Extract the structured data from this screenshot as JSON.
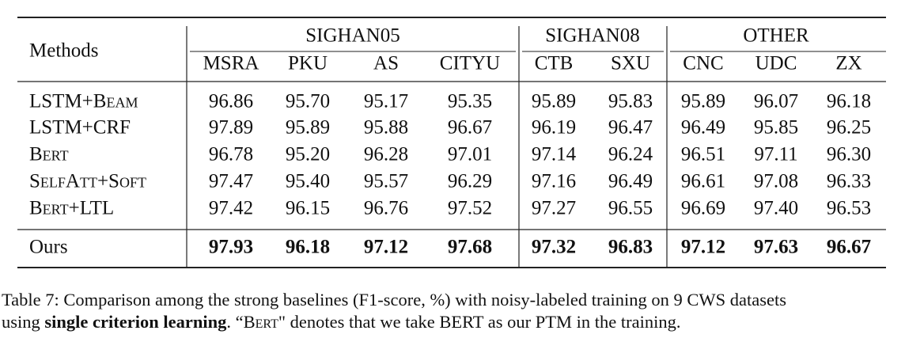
{
  "table": {
    "corner": "Methods",
    "groups": [
      "SIGHAN05",
      "SIGHAN08",
      "OTHER"
    ],
    "columns": [
      "MSRA",
      "PKU",
      "AS",
      "CITYU",
      "CTB",
      "SXU",
      "CNC",
      "UDC",
      "ZX"
    ],
    "rows": [
      {
        "method": "LSTM+Beam",
        "values": [
          "96.86",
          "95.70",
          "95.17",
          "95.35",
          "95.89",
          "95.83",
          "95.89",
          "96.07",
          "96.18"
        ]
      },
      {
        "method": "LSTM+CRF",
        "values": [
          "97.89",
          "95.89",
          "95.88",
          "96.67",
          "96.19",
          "96.47",
          "96.49",
          "95.85",
          "96.25"
        ]
      },
      {
        "method": "Bert",
        "values": [
          "96.78",
          "95.20",
          "96.28",
          "97.01",
          "97.14",
          "96.24",
          "96.51",
          "97.11",
          "96.30"
        ]
      },
      {
        "method": "SelfAtt+Soft",
        "values": [
          "97.47",
          "95.40",
          "95.57",
          "96.29",
          "97.16",
          "96.49",
          "96.61",
          "97.08",
          "96.33"
        ]
      },
      {
        "method": "Bert+LTL",
        "values": [
          "97.42",
          "96.15",
          "96.76",
          "97.52",
          "97.27",
          "96.55",
          "96.69",
          "97.40",
          "96.53"
        ]
      }
    ],
    "ours": {
      "method": "Ours",
      "values": [
        "97.93",
        "96.18",
        "97.12",
        "97.68",
        "97.32",
        "96.83",
        "97.12",
        "97.63",
        "96.67"
      ]
    }
  },
  "caption": {
    "line1": "Table 7: Comparison among the strong baselines (F1-score, %) with noisy-labeled training on 9 CWS datasets",
    "line2_a": "using ",
    "line2_bold": "single criterion learning",
    "line2_b": ". “",
    "line2_sc": "Bert",
    "line2_c": "\" denotes that we take BERT as our PTM in the training."
  }
}
